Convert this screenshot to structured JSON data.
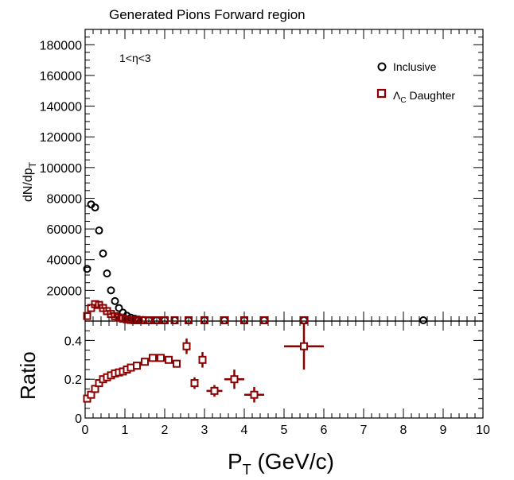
{
  "chart_data": [
    {
      "panel": "top",
      "type": "scatter",
      "title": "Generated Pions Forward region",
      "xlabel": "P_T (GeV/c)",
      "ylabel": "dN/dp_T",
      "xlim": [
        0,
        10
      ],
      "ylim": [
        0,
        190000
      ],
      "yticks": [
        20000,
        40000,
        60000,
        80000,
        100000,
        120000,
        140000,
        160000,
        180000
      ],
      "ytick_labels": [
        "20000",
        "40000",
        "60000",
        "80000",
        "100000",
        "120000",
        "140000",
        "160000",
        "180000"
      ],
      "annotation": "1<η<3",
      "legend_position": "top-right",
      "series": [
        {
          "name": "Inclusive",
          "color": "#000000",
          "marker": "open-circle",
          "x": [
            0.05,
            0.15,
            0.25,
            0.35,
            0.45,
            0.55,
            0.65,
            0.75,
            0.85,
            0.95,
            1.05,
            1.15,
            1.25,
            1.35,
            1.45,
            1.6,
            1.8,
            2.0,
            2.25,
            2.6,
            3.0,
            3.5,
            4.0,
            4.5,
            5.5,
            8.5
          ],
          "y": [
            34000,
            76000,
            74000,
            59000,
            44000,
            31000,
            20000,
            13000,
            8500,
            5500,
            3500,
            2200,
            1500,
            1000,
            700,
            450,
            300,
            200,
            130,
            80,
            50,
            30,
            20,
            12,
            5,
            2
          ]
        },
        {
          "name": "Λc Daughter",
          "color": "#8b0000",
          "marker": "open-square",
          "x": [
            0.05,
            0.15,
            0.25,
            0.35,
            0.45,
            0.55,
            0.65,
            0.75,
            0.85,
            0.95,
            1.05,
            1.15,
            1.25,
            1.35,
            1.45,
            1.6,
            1.8,
            2.0,
            2.25,
            2.6,
            3.0,
            3.5,
            4.0,
            4.5,
            5.5
          ],
          "y": [
            3300,
            8500,
            11000,
            10500,
            8500,
            6500,
            4600,
            3200,
            2300,
            1600,
            1100,
            700,
            480,
            340,
            240,
            160,
            100,
            60,
            30,
            20,
            10,
            6,
            4,
            2,
            1
          ]
        }
      ]
    },
    {
      "panel": "ratio",
      "type": "scatter",
      "xlabel": "P_T (GeV/c)",
      "ylabel": "Ratio",
      "xlim": [
        0,
        10
      ],
      "ylim": [
        0,
        0.5
      ],
      "xticks": [
        0,
        1,
        2,
        3,
        4,
        5,
        6,
        7,
        8,
        9,
        10
      ],
      "xtick_labels": [
        "0",
        "1",
        "2",
        "3",
        "4",
        "5",
        "6",
        "7",
        "8",
        "9",
        "10"
      ],
      "yticks": [
        0,
        0.2,
        0.4
      ],
      "ytick_labels": [
        "0",
        "0.2",
        "0.4"
      ],
      "series": [
        {
          "name": "",
          "color": "#8b0000",
          "marker": "open-square",
          "points": [
            {
              "x": 0.05,
              "y": 0.1,
              "xerr": 0.05,
              "yerr": 0.01
            },
            {
              "x": 0.15,
              "y": 0.12,
              "xerr": 0.05,
              "yerr": 0.01
            },
            {
              "x": 0.25,
              "y": 0.15,
              "xerr": 0.05,
              "yerr": 0.01
            },
            {
              "x": 0.35,
              "y": 0.18,
              "xerr": 0.05,
              "yerr": 0.01
            },
            {
              "x": 0.45,
              "y": 0.2,
              "xerr": 0.05,
              "yerr": 0.01
            },
            {
              "x": 0.55,
              "y": 0.21,
              "xerr": 0.05,
              "yerr": 0.01
            },
            {
              "x": 0.65,
              "y": 0.22,
              "xerr": 0.05,
              "yerr": 0.01
            },
            {
              "x": 0.75,
              "y": 0.23,
              "xerr": 0.05,
              "yerr": 0.01
            },
            {
              "x": 0.85,
              "y": 0.235,
              "xerr": 0.05,
              "yerr": 0.01
            },
            {
              "x": 0.95,
              "y": 0.24,
              "xerr": 0.05,
              "yerr": 0.01
            },
            {
              "x": 1.05,
              "y": 0.25,
              "xerr": 0.05,
              "yerr": 0.01
            },
            {
              "x": 1.15,
              "y": 0.26,
              "xerr": 0.05,
              "yerr": 0.01
            },
            {
              "x": 1.3,
              "y": 0.27,
              "xerr": 0.1,
              "yerr": 0.01
            },
            {
              "x": 1.5,
              "y": 0.29,
              "xerr": 0.1,
              "yerr": 0.01
            },
            {
              "x": 1.7,
              "y": 0.31,
              "xerr": 0.1,
              "yerr": 0.015
            },
            {
              "x": 1.9,
              "y": 0.31,
              "xerr": 0.1,
              "yerr": 0.015
            },
            {
              "x": 2.1,
              "y": 0.3,
              "xerr": 0.1,
              "yerr": 0.015
            },
            {
              "x": 2.3,
              "y": 0.28,
              "xerr": 0.1,
              "yerr": 0.02
            },
            {
              "x": 2.55,
              "y": 0.37,
              "xerr": 0.1,
              "yerr": 0.04
            },
            {
              "x": 2.75,
              "y": 0.18,
              "xerr": 0.1,
              "yerr": 0.03
            },
            {
              "x": 2.95,
              "y": 0.3,
              "xerr": 0.1,
              "yerr": 0.04
            },
            {
              "x": 3.25,
              "y": 0.14,
              "xerr": 0.2,
              "yerr": 0.03
            },
            {
              "x": 3.75,
              "y": 0.2,
              "xerr": 0.25,
              "yerr": 0.05
            },
            {
              "x": 4.25,
              "y": 0.12,
              "xerr": 0.25,
              "yerr": 0.04
            },
            {
              "x": 5.5,
              "y": 0.37,
              "xerr": 0.5,
              "yerr": 0.12
            }
          ]
        }
      ]
    }
  ],
  "labels": {
    "title": "Generated Pions Forward region",
    "annotation": "1<η<3",
    "legend_inclusive": "Inclusive",
    "legend_lambda_symbol": "Λ",
    "legend_lambda_sub": "C",
    "legend_lambda_rest": " Daughter",
    "ylabel_top_main": "dN/dp",
    "ylabel_top_sub": "T",
    "ylabel_ratio": "Ratio",
    "xlabel_main": "P",
    "xlabel_sub": "T",
    "xlabel_rest": " (GeV/c)"
  }
}
